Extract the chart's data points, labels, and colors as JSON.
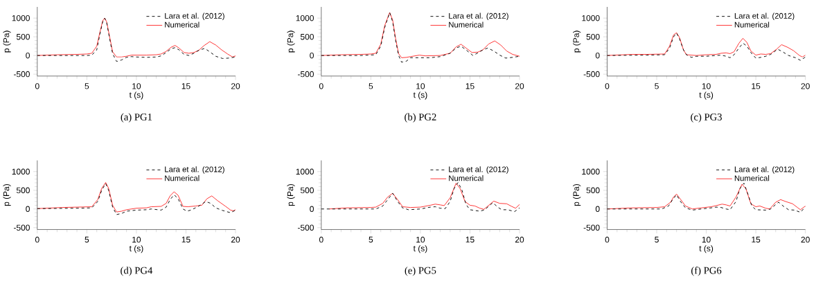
{
  "chart_data": [
    {
      "type": "line",
      "title": "(a) PG1",
      "xlabel": "t (s)",
      "ylabel": "p (Pa)",
      "xlim": [
        0,
        20
      ],
      "ylim": [
        -550,
        1300
      ],
      "xticks": [
        0,
        5,
        10,
        15,
        20
      ],
      "yticks": [
        -500,
        0,
        500,
        1000
      ],
      "legend": "top right",
      "series": [
        {
          "name": "Lara et al. (2012)",
          "color": "#000000",
          "line_style": "dashed",
          "x": [
            0,
            2,
            4,
            5,
            5.5,
            6,
            6.3,
            6.6,
            6.8,
            7,
            7.3,
            7.6,
            8,
            8.5,
            9,
            9.5,
            10,
            11,
            12,
            12.5,
            13,
            13.5,
            13.9,
            14.3,
            14.8,
            15.3,
            15.8,
            16.3,
            16.9,
            17.5,
            18,
            18.7,
            19.3,
            20
          ],
          "values": [
            0,
            0,
            0,
            0,
            10,
            150,
            550,
            900,
            1000,
            880,
            450,
            50,
            -160,
            -120,
            -50,
            -30,
            -40,
            -50,
            -40,
            -10,
            80,
            180,
            210,
            150,
            30,
            0,
            60,
            140,
            190,
            80,
            -20,
            -80,
            -70,
            -40
          ]
        },
        {
          "name": "Numerical",
          "color": "#ff2a2a",
          "line_style": "solid",
          "x": [
            0,
            2,
            4,
            5,
            5.5,
            6,
            6.3,
            6.6,
            6.8,
            7,
            7.3,
            7.6,
            8,
            8.5,
            9,
            9.5,
            10,
            11,
            12,
            12.5,
            13,
            13.5,
            13.9,
            14.3,
            14.8,
            15.3,
            15.8,
            16.3,
            16.8,
            17.4,
            18,
            18.6,
            19.2,
            19.7,
            20
          ],
          "values": [
            0,
            20,
            30,
            40,
            60,
            250,
            600,
            930,
            1000,
            900,
            500,
            100,
            -40,
            -40,
            -20,
            10,
            10,
            10,
            20,
            40,
            110,
            220,
            270,
            200,
            80,
            60,
            80,
            140,
            260,
            370,
            280,
            150,
            40,
            -40,
            -10
          ]
        }
      ]
    },
    {
      "type": "line",
      "title": "(b) PG2",
      "xlabel": "t (s)",
      "ylabel": "p (Pa)",
      "xlim": [
        0,
        20
      ],
      "ylim": [
        -550,
        1300
      ],
      "xticks": [
        0,
        5,
        10,
        15,
        20
      ],
      "yticks": [
        -500,
        0,
        500,
        1000
      ],
      "legend": "top right",
      "series": [
        {
          "name": "Lara et al. (2012)",
          "color": "#000000",
          "line_style": "dashed",
          "x": [
            0,
            2,
            4,
            5.5,
            6,
            6.4,
            6.9,
            7.2,
            7.5,
            7.8,
            8.1,
            8.6,
            9,
            10,
            11,
            12,
            13,
            13.6,
            14.1,
            14.6,
            15.3,
            15.8,
            16.3,
            16.8,
            17.4,
            18,
            18.6,
            19.3,
            20
          ],
          "values": [
            0,
            0,
            0,
            20,
            250,
            750,
            1150,
            900,
            400,
            0,
            -180,
            -150,
            -60,
            -60,
            -60,
            -30,
            60,
            200,
            250,
            150,
            0,
            70,
            150,
            200,
            120,
            10,
            -70,
            -50,
            -20
          ]
        },
        {
          "name": "Numerical",
          "color": "#ff2a2a",
          "line_style": "solid",
          "x": [
            0,
            2,
            4,
            5,
            5.5,
            6,
            6.4,
            6.9,
            7.2,
            7.5,
            7.8,
            8.1,
            8.6,
            9,
            9.9,
            10.5,
            12,
            13,
            13.6,
            14.1,
            14.6,
            15.2,
            15.8,
            16.3,
            16.9,
            17.5,
            18.1,
            18.7,
            19.3,
            20
          ],
          "values": [
            0,
            20,
            30,
            40,
            60,
            300,
            800,
            1150,
            950,
            450,
            50,
            -60,
            -50,
            -30,
            10,
            -10,
            0,
            60,
            230,
            300,
            200,
            80,
            90,
            150,
            310,
            390,
            280,
            120,
            30,
            -20
          ]
        }
      ]
    },
    {
      "type": "line",
      "title": "(c) PG3",
      "xlabel": "t (s)",
      "ylabel": "p (Pa)",
      "xlim": [
        0,
        20
      ],
      "ylim": [
        -550,
        1300
      ],
      "xticks": [
        0,
        5,
        10,
        15,
        20
      ],
      "yticks": [
        -500,
        0,
        500,
        1000
      ],
      "legend": "top right",
      "series": [
        {
          "name": "Lara et al. (2012)",
          "color": "#000000",
          "line_style": "dashed",
          "x": [
            0,
            4,
            5.8,
            6.3,
            6.7,
            7.0,
            7.3,
            7.7,
            8,
            8.5,
            9,
            10,
            11,
            11.5,
            12,
            12.4,
            12.8,
            13.3,
            13.7,
            14.1,
            14.5,
            15,
            15.5,
            16,
            16.5,
            17.2,
            17.7,
            18.3,
            19,
            19.5,
            20
          ],
          "values": [
            0,
            10,
            20,
            200,
            500,
            600,
            450,
            150,
            20,
            -50,
            -20,
            -20,
            0,
            10,
            -20,
            -60,
            20,
            200,
            330,
            250,
            80,
            -70,
            -50,
            -20,
            30,
            170,
            100,
            0,
            -60,
            -130,
            -40
          ]
        },
        {
          "name": "Numerical",
          "color": "#ff2a2a",
          "line_style": "solid",
          "x": [
            0,
            2.5,
            4,
            5.8,
            6.3,
            6.7,
            7.0,
            7.3,
            7.7,
            8,
            9,
            10,
            11,
            11.5,
            12,
            12.4,
            12.8,
            13.3,
            13.7,
            14.1,
            14.5,
            15,
            15.5,
            16,
            16.5,
            17.1,
            17.6,
            18.2,
            18.8,
            19.4,
            19.7,
            20
          ],
          "values": [
            0,
            30,
            30,
            40,
            250,
            550,
            610,
            480,
            150,
            20,
            0,
            20,
            30,
            60,
            70,
            50,
            100,
            330,
            460,
            350,
            120,
            10,
            40,
            30,
            50,
            170,
            290,
            220,
            130,
            0,
            -40,
            10
          ]
        }
      ]
    },
    {
      "type": "line",
      "title": "(d) PG4",
      "xlabel": "t (s)",
      "ylabel": "p (Pa)",
      "xlim": [
        0,
        20
      ],
      "ylim": [
        -550,
        1300
      ],
      "xticks": [
        0,
        5,
        10,
        15,
        20
      ],
      "yticks": [
        -500,
        0,
        500,
        1000
      ],
      "legend": "top right",
      "series": [
        {
          "name": "Lara et al. (2012)",
          "color": "#000000",
          "line_style": "dashed",
          "x": [
            0,
            4,
            5.5,
            6.1,
            6.5,
            6.9,
            7.2,
            7.6,
            8,
            8.5,
            9,
            10,
            11,
            11.5,
            12.5,
            13,
            13.4,
            13.8,
            14.2,
            14.7,
            15.1,
            15.6,
            16.3,
            17,
            17.5,
            18,
            18.7,
            19.5,
            20
          ],
          "values": [
            10,
            20,
            30,
            200,
            500,
            680,
            500,
            50,
            -150,
            -120,
            -60,
            -30,
            -20,
            0,
            -30,
            50,
            250,
            380,
            280,
            0,
            -60,
            -20,
            80,
            200,
            150,
            30,
            -40,
            -100,
            -30
          ]
        },
        {
          "name": "Numerical",
          "color": "#ff2a2a",
          "line_style": "solid",
          "x": [
            0,
            2.5,
            4,
            5.5,
            6.1,
            6.5,
            6.9,
            7.2,
            7.6,
            8,
            8.5,
            9,
            10,
            11,
            11.5,
            12.5,
            13,
            13.4,
            13.8,
            14.2,
            14.7,
            15.2,
            16,
            16.6,
            17.1,
            17.6,
            18.2,
            19,
            19.5,
            19.8,
            20
          ],
          "values": [
            10,
            40,
            50,
            60,
            250,
            550,
            710,
            550,
            100,
            -80,
            -60,
            -20,
            20,
            30,
            60,
            70,
            150,
            350,
            460,
            370,
            70,
            60,
            80,
            100,
            270,
            350,
            220,
            70,
            -30,
            -50,
            -20
          ]
        }
      ]
    },
    {
      "type": "line",
      "title": "(e) PG5",
      "xlabel": "t (s)",
      "ylabel": "p (Pa)",
      "xlim": [
        0,
        20
      ],
      "ylim": [
        -550,
        1300
      ],
      "xticks": [
        0,
        5,
        10,
        15,
        20
      ],
      "yticks": [
        -500,
        0,
        500,
        1000
      ],
      "legend": "top right",
      "series": [
        {
          "name": "Lara et al. (2012)",
          "color": "#000000",
          "line_style": "dashed",
          "x": [
            0,
            5.5,
            6.2,
            6.7,
            7.2,
            7.7,
            8.2,
            8.8,
            10,
            11,
            11.5,
            12,
            12.5,
            13,
            13.4,
            13.8,
            14.2,
            14.6,
            15,
            15.5,
            16,
            16.5,
            17,
            17.3,
            17.8,
            18.2,
            18.8,
            19.5,
            20
          ],
          "values": [
            0,
            0,
            80,
            250,
            420,
            200,
            30,
            -20,
            0,
            50,
            60,
            20,
            10,
            200,
            550,
            710,
            500,
            120,
            -20,
            -40,
            -60,
            -20,
            100,
            170,
            50,
            -20,
            -20,
            -70,
            30
          ]
        },
        {
          "name": "Numerical",
          "color": "#ff2a2a",
          "line_style": "solid",
          "x": [
            0.8,
            2.5,
            5,
            5.5,
            6.2,
            6.7,
            7.2,
            7.7,
            8.2,
            9,
            10,
            11,
            11.5,
            12,
            12.4,
            13,
            13.6,
            14,
            14.5,
            15,
            15.5,
            16,
            16.4,
            16.9,
            17.4,
            18,
            18.7,
            19.2,
            19.6,
            20
          ],
          "values": [
            0,
            30,
            40,
            50,
            150,
            320,
            420,
            250,
            60,
            40,
            50,
            100,
            130,
            110,
            90,
            300,
            690,
            550,
            200,
            100,
            80,
            20,
            -10,
            100,
            210,
            150,
            140,
            70,
            20,
            120
          ]
        }
      ]
    },
    {
      "type": "line",
      "title": "(f) PG6",
      "xlabel": "t (s)",
      "ylabel": "p (Pa)",
      "xlim": [
        0,
        20
      ],
      "ylim": [
        -550,
        1300
      ],
      "xticks": [
        0,
        5,
        10,
        15,
        20
      ],
      "yticks": [
        -500,
        0,
        500,
        1000
      ],
      "legend": "top right",
      "series": [
        {
          "name": "Lara et al. (2012)",
          "color": "#000000",
          "line_style": "dashed",
          "x": [
            0,
            5.5,
            6.2,
            6.6,
            7.0,
            7.4,
            7.9,
            8.6,
            9.5,
            10.5,
            11,
            11.5,
            12,
            12.4,
            13,
            13.4,
            13.8,
            14.2,
            14.6,
            15,
            16,
            16.5,
            17,
            17.3,
            17.8,
            18.3,
            18.9,
            19.5,
            20
          ],
          "values": [
            0,
            0,
            80,
            250,
            380,
            200,
            30,
            -30,
            0,
            30,
            50,
            40,
            0,
            -20,
            200,
            550,
            690,
            400,
            80,
            -20,
            -30,
            0,
            120,
            180,
            70,
            -20,
            -30,
            -90,
            60
          ]
        },
        {
          "name": "Numerical",
          "color": "#ff2a2a",
          "line_style": "solid",
          "x": [
            0,
            2.5,
            5,
            5.8,
            6.4,
            6.7,
            7.0,
            7.4,
            7.9,
            8.6,
            9.5,
            10.5,
            11,
            11.6,
            12,
            12.4,
            13,
            13.6,
            14,
            14.5,
            15,
            15.4,
            16,
            16.4,
            17,
            17.5,
            18,
            18.7,
            19.2,
            19.5,
            20
          ],
          "values": [
            0,
            30,
            40,
            60,
            180,
            320,
            400,
            260,
            80,
            0,
            30,
            60,
            90,
            130,
            110,
            80,
            320,
            660,
            540,
            140,
            60,
            80,
            20,
            0,
            180,
            250,
            200,
            140,
            40,
            -20,
            80
          ]
        }
      ]
    }
  ]
}
